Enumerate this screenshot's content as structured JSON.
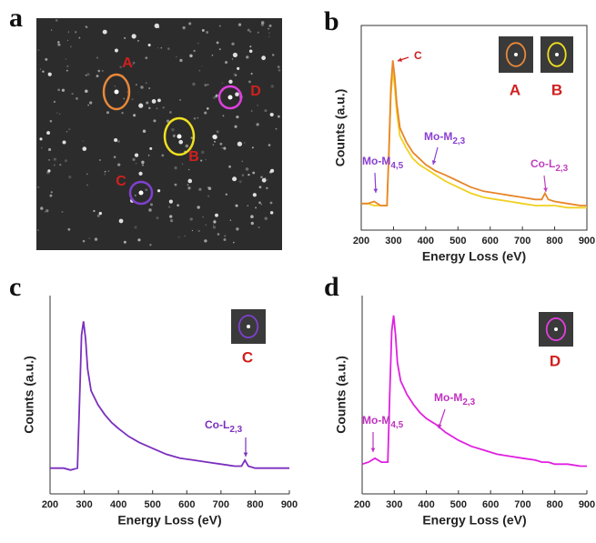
{
  "figure": {
    "panels": [
      "a",
      "b",
      "c",
      "d"
    ]
  },
  "image": {
    "markers": [
      {
        "label": "A",
        "color": "#e8883a"
      },
      {
        "label": "B",
        "color": "#f0e020"
      },
      {
        "label": "C",
        "color": "#8040d0"
      },
      {
        "label": "D",
        "color": "#e040e0"
      }
    ]
  },
  "chart_data": [
    {
      "type": "line",
      "xlabel": "Energy Loss (eV)",
      "ylabel": "Counts (a.u.)",
      "x": [
        200,
        220,
        240,
        260,
        280,
        286,
        292,
        298,
        304,
        310,
        320,
        340,
        360,
        380,
        400,
        430,
        460,
        500,
        540,
        580,
        620,
        660,
        700,
        740,
        760,
        770,
        780,
        800,
        840,
        880,
        900
      ],
      "series": [
        {
          "color": "#f0d020",
          "values": [
            13,
            13,
            12,
            12,
            12,
            38,
            66,
            78,
            70,
            58,
            46,
            40,
            35,
            32,
            30,
            27,
            24,
            21,
            18,
            16,
            15,
            14,
            13,
            12,
            12,
            12,
            12,
            12,
            11,
            11,
            11
          ]
        },
        {
          "color": "#e8862a",
          "values": [
            13,
            13,
            14,
            12,
            12,
            40,
            70,
            83,
            75,
            62,
            50,
            43,
            38,
            35,
            32,
            29,
            27,
            24,
            21,
            19,
            18,
            17,
            16,
            15,
            15,
            18,
            15,
            14,
            13,
            12,
            12
          ]
        }
      ],
      "xlim": [
        200,
        900
      ],
      "xticks": [
        200,
        300,
        400,
        500,
        600,
        700,
        800,
        900
      ],
      "ylim": [
        0,
        100
      ],
      "annotations": [
        {
          "text": "C",
          "color": "#d0201e"
        },
        {
          "text": "Mo-M",
          "sub": "4,5",
          "color": "#8a3fd0"
        },
        {
          "text": "Mo-M",
          "sub": "2,3",
          "color": "#8a3fd0"
        },
        {
          "text": "Co-L",
          "sub": "2,3",
          "color": "#c040c0"
        }
      ],
      "insets": [
        {
          "label": "A",
          "color": "#e8883a"
        },
        {
          "label": "B",
          "color": "#f0e020"
        }
      ]
    },
    {
      "type": "line",
      "xlabel": "Energy Loss (eV)",
      "ylabel": "Counts (a.u.)",
      "x": [
        200,
        220,
        240,
        260,
        280,
        286,
        292,
        298,
        304,
        310,
        320,
        340,
        360,
        380,
        400,
        430,
        460,
        500,
        540,
        580,
        620,
        660,
        700,
        740,
        760,
        770,
        780,
        800,
        840,
        880,
        900
      ],
      "series": [
        {
          "color": "#7b2fbe",
          "values": [
            13,
            13,
            13,
            12,
            13,
            45,
            80,
            87,
            78,
            63,
            52,
            45,
            40,
            36,
            33,
            29,
            26,
            23,
            20,
            18,
            17,
            16,
            15,
            14,
            14,
            17,
            14,
            13,
            13,
            13,
            13
          ]
        }
      ],
      "xlim": [
        200,
        900
      ],
      "xticks": [
        200,
        300,
        400,
        500,
        600,
        700,
        800,
        900
      ],
      "ylim": [
        0,
        100
      ],
      "annotations": [
        {
          "text": "Co-L",
          "sub": "2,3",
          "color": "#7b2fbe"
        }
      ],
      "insets": [
        {
          "label": "C",
          "color": "#8040d0"
        }
      ]
    },
    {
      "type": "line",
      "xlabel": "Energy Loss (eV)",
      "ylabel": "Counts (a.u.)",
      "x": [
        200,
        220,
        240,
        260,
        280,
        286,
        292,
        298,
        304,
        310,
        320,
        340,
        360,
        380,
        400,
        430,
        460,
        500,
        540,
        580,
        620,
        660,
        700,
        740,
        760,
        770,
        780,
        800,
        840,
        880,
        900
      ],
      "series": [
        {
          "color": "#e020e0",
          "values": [
            15,
            16,
            18,
            16,
            16,
            50,
            82,
            90,
            80,
            66,
            57,
            50,
            45,
            41,
            38,
            35,
            31,
            27,
            24,
            22,
            20,
            19,
            18,
            17,
            16,
            16,
            16,
            15,
            15,
            14,
            14
          ]
        }
      ],
      "xlim": [
        200,
        900
      ],
      "xticks": [
        200,
        300,
        400,
        500,
        600,
        700,
        800,
        900
      ],
      "ylim": [
        0,
        100
      ],
      "annotations": [
        {
          "text": "Mo-M",
          "sub": "4,5",
          "color": "#c030c0"
        },
        {
          "text": "Mo-M",
          "sub": "2,3",
          "color": "#c030c0"
        }
      ],
      "insets": [
        {
          "label": "D",
          "color": "#e040e0"
        }
      ]
    }
  ]
}
